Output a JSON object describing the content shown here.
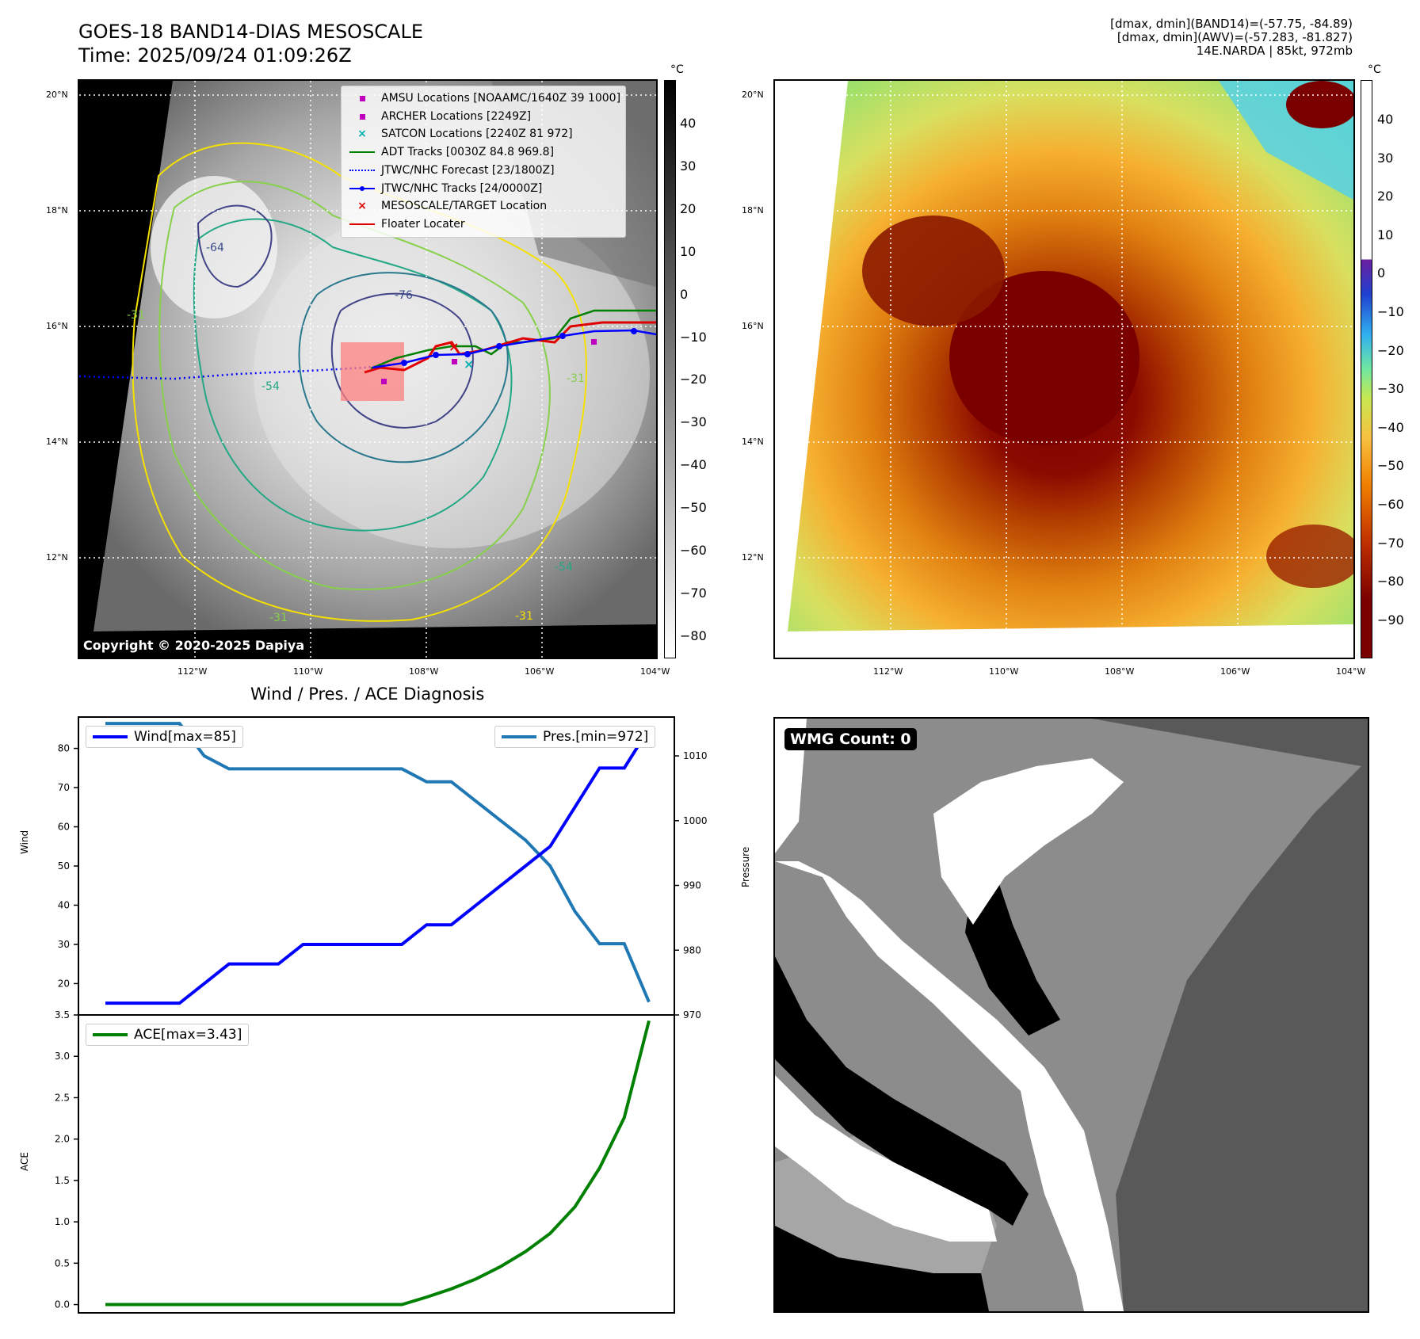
{
  "header": {
    "title": "GOES-18 BAND14-DIAS MESOSCALE",
    "time": "Time: 2025/09/24 01:09:26Z",
    "info_line1": "[dmax, dmin](BAND14)=(-57.75, -84.89)",
    "info_line2": "[dmax, dmin](AWV)=(-57.283, -81.827)",
    "info_line3": "14E.NARDA | 85kt, 972mb"
  },
  "map": {
    "lat_labels": [
      "20°N",
      "18°N",
      "16°N",
      "14°N",
      "12°N"
    ],
    "lon_labels": [
      "112°W",
      "110°W",
      "108°W",
      "106°W",
      "104°W"
    ],
    "contour_labels": [
      "-64",
      "-76",
      "-31",
      "-54",
      "-31",
      "-31",
      "-31",
      "-54"
    ],
    "copyright": "Copyright © 2020-2025 Dapiya",
    "legend": [
      {
        "label": "AMSU Locations [NOAAMC/1640Z 39 1000]",
        "symbol": "square",
        "color": "#c000c0"
      },
      {
        "label": "ARCHER Locations [2249Z]",
        "symbol": "square",
        "color": "#c000c0"
      },
      {
        "label": "SATCON Locations [2240Z 81 972]",
        "symbol": "x",
        "color": "#00b0b0"
      },
      {
        "label": "ADT Tracks [0030Z 84.8 969.8]",
        "symbol": "line",
        "color": "#008000"
      },
      {
        "label": "JTWC/NHC Forecast [23/1800Z]",
        "symbol": "dotted",
        "color": "#0000ff"
      },
      {
        "label": "JTWC/NHC Tracks [24/0000Z]",
        "symbol": "line-dot",
        "color": "#0000ff"
      },
      {
        "label": "MESOSCALE/TARGET Location",
        "symbol": "x",
        "color": "#e00000"
      },
      {
        "label": "Floater Locater",
        "symbol": "line",
        "color": "#e00000"
      }
    ],
    "gray_colorbar": {
      "unit": "°C",
      "ticks": [
        "40",
        "30",
        "20",
        "10",
        "0",
        "−10",
        "−20",
        "−30",
        "−40",
        "−50",
        "−60",
        "−70",
        "−80"
      ]
    },
    "color_colorbar": {
      "unit": "°C",
      "ticks": [
        "40",
        "30",
        "20",
        "10",
        "0",
        "−10",
        "−20",
        "−30",
        "−40",
        "−50",
        "−60",
        "−70",
        "−80",
        "−90"
      ]
    }
  },
  "diagnosis": {
    "title": "Wind / Pres. / ACE Diagnosis",
    "wind_legend": "Wind[max=85]",
    "pres_legend": "Pres.[min=972]",
    "ace_legend": "ACE[max=3.43]",
    "wind_axis_label": "Wind",
    "pres_axis_label": "Pressure",
    "ace_axis_label": "ACE",
    "wind_ticks": [
      "80",
      "70",
      "60",
      "50",
      "40",
      "30",
      "20"
    ],
    "pres_ticks": [
      "1010",
      "1000",
      "990",
      "980",
      "970"
    ],
    "ace_ticks": [
      "3.5",
      "3.0",
      "2.5",
      "2.0",
      "1.5",
      "1.0",
      "0.5",
      "0.0"
    ]
  },
  "wmg": {
    "label": "WMG Count: 0"
  },
  "chart_data": [
    {
      "type": "line",
      "title": "Wind / Pres. / ACE Diagnosis",
      "x": [
        0,
        1,
        2,
        3,
        4,
        5,
        6,
        7,
        8,
        9,
        10,
        11,
        12,
        13,
        14,
        15,
        16,
        17,
        18,
        19,
        20,
        21,
        22
      ],
      "series": [
        {
          "name": "Wind[max=85]",
          "axis": "Wind",
          "color": "#0000ff",
          "values": [
            15,
            15,
            15,
            15,
            20,
            25,
            25,
            25,
            30,
            30,
            30,
            30,
            30,
            35,
            35,
            40,
            45,
            50,
            55,
            65,
            75,
            75,
            85
          ]
        },
        {
          "name": "Pres.[min=972]",
          "axis": "Pressure",
          "color": "#1f77b4",
          "values": [
            1015,
            1015,
            1015,
            1015,
            1010,
            1008,
            1008,
            1008,
            1008,
            1008,
            1008,
            1008,
            1008,
            1006,
            1006,
            1003,
            1000,
            997,
            993,
            986,
            981,
            981,
            972
          ]
        }
      ],
      "ylim_wind": [
        12,
        88
      ],
      "ylim_pressure": [
        970,
        1016
      ]
    },
    {
      "type": "line",
      "series": [
        {
          "name": "ACE[max=3.43]",
          "axis": "ACE",
          "color": "#008000",
          "values": [
            0,
            0,
            0,
            0,
            0,
            0,
            0,
            0,
            0,
            0,
            0,
            0,
            0,
            0.09,
            0.19,
            0.31,
            0.46,
            0.64,
            0.86,
            1.18,
            1.65,
            2.26,
            3.43
          ]
        }
      ],
      "ylim": [
        -0.1,
        3.5
      ]
    }
  ]
}
